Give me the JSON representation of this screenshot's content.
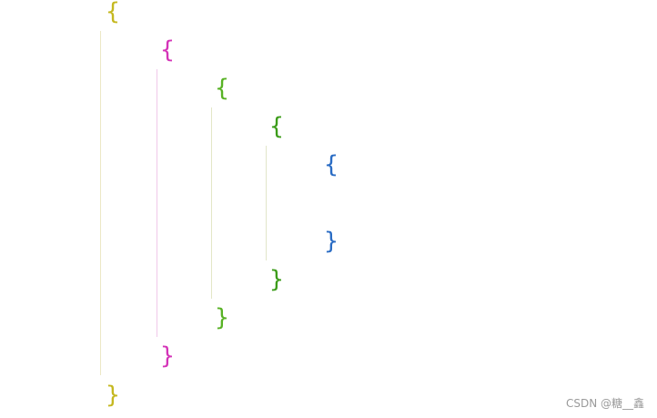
{
  "editor": {
    "levels": [
      {
        "open": "{",
        "close": "}",
        "color": "#c5b820"
      },
      {
        "open": "{",
        "close": "}",
        "color": "#d434b8"
      },
      {
        "open": "{",
        "close": "}",
        "color": "#58b225"
      },
      {
        "open": "{",
        "close": "}",
        "color": "#3c9c1a"
      },
      {
        "open": "{",
        "close": "}",
        "color": "#2a6cc4"
      }
    ]
  },
  "watermark": "CSDN @糖__鑫"
}
